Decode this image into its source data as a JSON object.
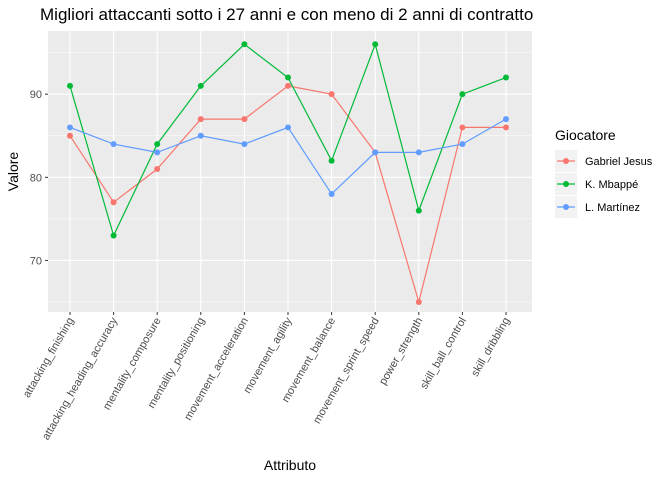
{
  "chart_data": {
    "type": "line",
    "title": "Migliori attaccanti sotto i 27 anni e con meno di 2 anni di contratto",
    "xlabel": "Attributo",
    "ylabel": "Valore",
    "categories": [
      "attacking_finishing",
      "attacking_heading_accuracy",
      "mentality_composure",
      "mentality_positioning",
      "movement_acceleration",
      "movement_agility",
      "movement_balance",
      "movement_sprint_speed",
      "power_strength",
      "skill_ball_control",
      "skill_dribbling"
    ],
    "ylim": [
      63.8,
      97.6
    ],
    "yticks": [
      70,
      80,
      90
    ],
    "grid": true,
    "legend": {
      "title": "Giocatore",
      "position": "right"
    },
    "series": [
      {
        "name": "Gabriel Jesus",
        "color": "#F8766D",
        "values": [
          85,
          77,
          81,
          87,
          87,
          91,
          90,
          83,
          65,
          86,
          86
        ]
      },
      {
        "name": "K. Mbappé",
        "color": "#00BA38",
        "values": [
          91,
          73,
          84,
          91,
          96,
          92,
          82,
          96,
          76,
          90,
          92
        ]
      },
      {
        "name": "L. Martínez",
        "color": "#619CFF",
        "values": [
          86,
          84,
          83,
          85,
          84,
          86,
          78,
          83,
          83,
          84,
          87
        ]
      }
    ]
  }
}
